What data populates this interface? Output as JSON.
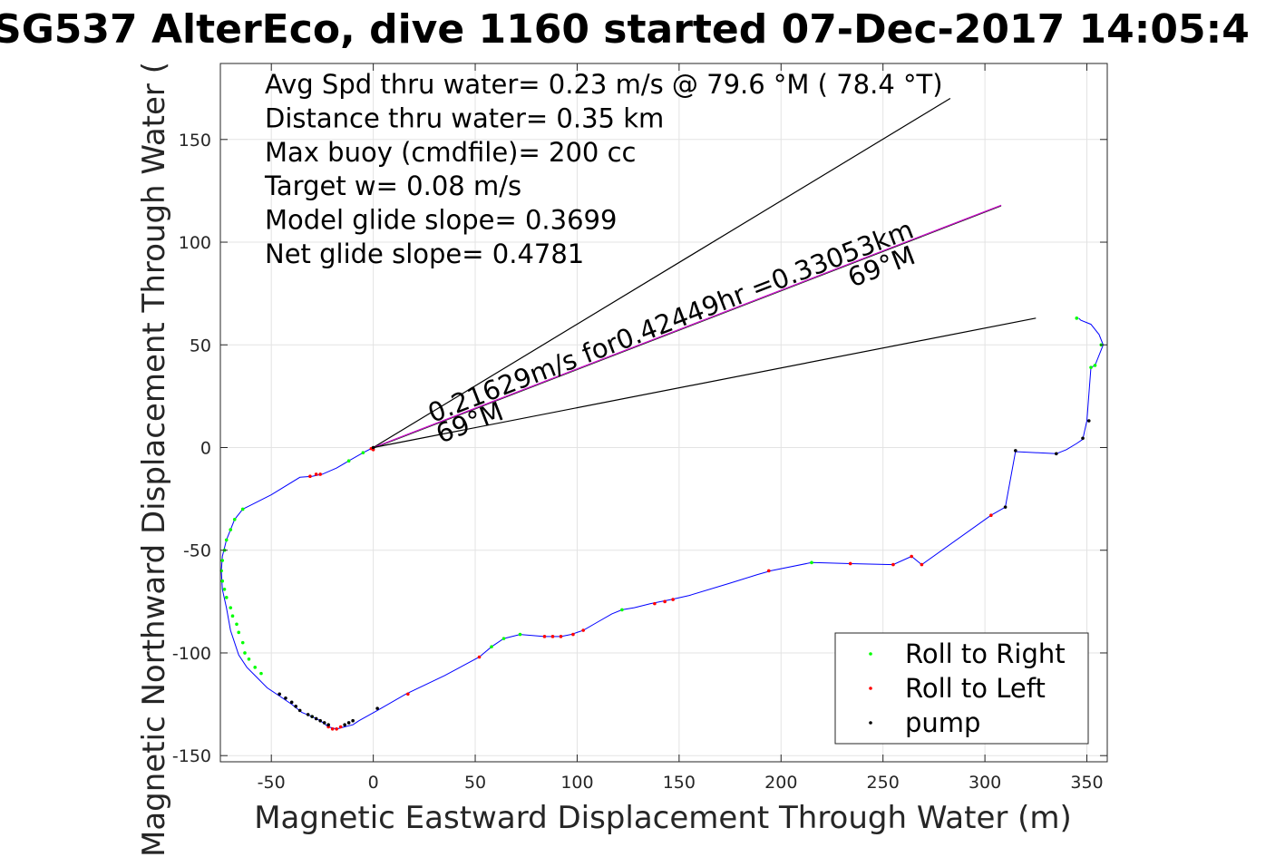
{
  "chart_data": {
    "type": "line",
    "title": "SG537 AlterEco, dive 1160 started 07-Dec-2017 14:05:4",
    "xlabel": "Magnetic Eastward Displacement Through Water (m)",
    "ylabel": "Magnetic Northward Displacement Through Water (",
    "xlim": [
      -75,
      360
    ],
    "ylim": [
      -153,
      187
    ],
    "xticks": [
      -50,
      0,
      50,
      100,
      150,
      200,
      250,
      300,
      350
    ],
    "yticks": [
      -150,
      -100,
      -50,
      0,
      50,
      100,
      150
    ],
    "grid": true,
    "stats": [
      "Avg Spd thru water=  0.23 m/s @  79.6 °M ( 78.4 °T)",
      "Distance thru water=  0.35 km",
      "Max buoy (cmdfile)= 200 cc",
      "Target w= 0.08 m/s",
      "Model glide slope= 0.3699",
      "Net glide slope= 0.4781"
    ],
    "annotations": [
      {
        "text": "0.21629m/s for0.42449hr =0.33053km",
        "x": 29,
        "y": 12
      },
      {
        "text": "69°M",
        "x": 33,
        "y": 2
      },
      {
        "text": "69°M",
        "x": 235,
        "y": 78
      }
    ],
    "reference_lines": [
      {
        "name": "upper",
        "color": "#000000",
        "points": [
          [
            0,
            0
          ],
          [
            283,
            170
          ]
        ]
      },
      {
        "name": "mean",
        "color": "#cc00cc",
        "points": [
          [
            0,
            0
          ],
          [
            308,
            118
          ]
        ]
      },
      {
        "name": "lower",
        "color": "#000000",
        "points": [
          [
            0,
            0
          ],
          [
            325,
            63
          ]
        ]
      }
    ],
    "track": {
      "color": "#0000ff",
      "x": [
        0,
        -5,
        -12,
        -18,
        -25,
        -30,
        -36,
        -50,
        -60,
        -64,
        -68,
        -72,
        -74,
        -74.5,
        -74,
        -72,
        -70,
        -66,
        -62,
        -58,
        -52,
        -46,
        -40,
        -35,
        -30,
        -26,
        -22,
        -18,
        -14,
        -10,
        -7,
        2,
        16,
        35,
        52,
        58,
        64,
        72,
        84,
        92,
        97,
        103,
        110,
        117,
        122,
        128,
        136,
        146,
        155,
        175,
        188,
        195,
        215,
        234,
        255,
        264,
        269,
        303,
        310,
        315,
        335,
        340,
        345,
        348,
        350,
        352,
        354,
        358,
        356,
        352,
        347,
        346
      ],
      "y": [
        0,
        -2.5,
        -6.5,
        -10,
        -13,
        -14,
        -14.5,
        -23,
        -28,
        -30,
        -35,
        -45,
        -53,
        -60,
        -69,
        -78,
        -89,
        -101,
        -107,
        -111,
        -117,
        -121,
        -125,
        -129,
        -131,
        -133,
        -136,
        -137,
        -136,
        -135,
        -133,
        -128,
        -120,
        -111,
        -102,
        -97,
        -93,
        -91,
        -92,
        -92,
        -91,
        -89,
        -85,
        -81,
        -79,
        -78,
        -76,
        -74,
        -72,
        -66,
        -62,
        -60,
        -56,
        -56.5,
        -57,
        -53,
        -57,
        -33,
        -29,
        -2,
        -3,
        -1,
        2,
        4,
        13,
        39,
        40,
        50,
        55,
        60,
        62,
        63
      ]
    },
    "series": [
      {
        "name": "Roll to Right",
        "color": "#00ff00",
        "marker": "dot",
        "points": [
          [
            -5,
            -2.5
          ],
          [
            -12,
            -6.5
          ],
          [
            -64,
            -30
          ],
          [
            -68,
            -35
          ],
          [
            -70,
            -40
          ],
          [
            -72,
            -45
          ],
          [
            -73,
            -50
          ],
          [
            -74,
            -55
          ],
          [
            -74.5,
            -60
          ],
          [
            -74,
            -65
          ],
          [
            -73,
            -69
          ],
          [
            -72,
            -73
          ],
          [
            -70,
            -78
          ],
          [
            -69,
            -82
          ],
          [
            -67,
            -86
          ],
          [
            -66,
            -90
          ],
          [
            -64,
            -95
          ],
          [
            -63,
            -100
          ],
          [
            -61,
            -103
          ],
          [
            -58,
            -107
          ],
          [
            -55,
            -110
          ],
          [
            -30,
            -131
          ],
          [
            58,
            -97
          ],
          [
            64,
            -93
          ],
          [
            72,
            -91
          ],
          [
            122,
            -79
          ],
          [
            215,
            -56
          ],
          [
            352,
            39
          ],
          [
            354,
            40
          ],
          [
            345,
            63
          ],
          [
            357,
            50
          ]
        ]
      },
      {
        "name": "Roll to Left",
        "color": "#ff0000",
        "marker": "dot",
        "points": [
          [
            -1,
            -0.5
          ],
          [
            0,
            -1
          ],
          [
            -26,
            -13
          ],
          [
            -28,
            -13
          ],
          [
            -31,
            -14
          ],
          [
            -22,
            -136
          ],
          [
            -20,
            -137
          ],
          [
            -18,
            -137
          ],
          [
            -16,
            -136
          ],
          [
            17,
            -120
          ],
          [
            52,
            -102
          ],
          [
            84,
            -92
          ],
          [
            88,
            -92
          ],
          [
            92,
            -92
          ],
          [
            98,
            -91
          ],
          [
            103,
            -89
          ],
          [
            138,
            -76
          ],
          [
            143,
            -75
          ],
          [
            147,
            -74
          ],
          [
            194,
            -60
          ],
          [
            234,
            -56.5
          ],
          [
            255,
            -57
          ],
          [
            264,
            -53
          ],
          [
            269,
            -57
          ],
          [
            303,
            -33
          ]
        ]
      },
      {
        "name": "pump",
        "color": "#000000",
        "marker": "dot",
        "points": [
          [
            -46,
            -120
          ],
          [
            -43,
            -122
          ],
          [
            -40,
            -124
          ],
          [
            -38,
            -126
          ],
          [
            -36,
            -128
          ],
          [
            -32,
            -130
          ],
          [
            -30,
            -131
          ],
          [
            -28,
            -132
          ],
          [
            -26,
            -133
          ],
          [
            -24,
            -134
          ],
          [
            -22,
            -135
          ],
          [
            -14,
            -135
          ],
          [
            -12,
            -134
          ],
          [
            -10,
            -133
          ],
          [
            2,
            -127
          ],
          [
            310,
            -29
          ],
          [
            315,
            -1.5
          ],
          [
            335,
            -3
          ],
          [
            348,
            4.5
          ],
          [
            351,
            13
          ],
          [
            0,
            0
          ]
        ]
      }
    ],
    "legend": {
      "position": "bottom-right",
      "entries": [
        "Roll to Right",
        "Roll to Left",
        "pump"
      ]
    }
  }
}
